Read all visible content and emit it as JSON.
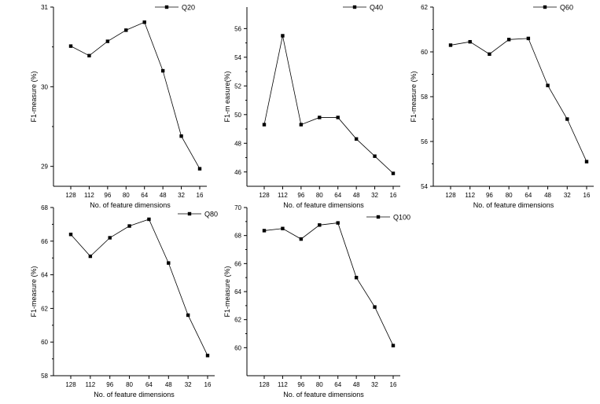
{
  "chart_data": [
    {
      "type": "line",
      "xlabel": "No. of feature dimensions",
      "ylabel": "F1-measure (%)",
      "categories": [
        "128",
        "112",
        "96",
        "80",
        "64",
        "48",
        "32",
        "16"
      ],
      "ylim": [
        28.75,
        31.0
      ],
      "yticks": [
        29,
        30,
        31
      ],
      "series": [
        {
          "name": "Q20",
          "values": [
            30.51,
            30.39,
            30.57,
            30.71,
            30.81,
            30.2,
            29.38,
            28.97
          ]
        }
      ],
      "legend": "top-right",
      "grid": false
    },
    {
      "type": "line",
      "xlabel": "No. of feature dimensions",
      "ylabel": "F1-m easure(%)",
      "categories": [
        "128",
        "112",
        "96",
        "80",
        "64",
        "48",
        "32",
        "16"
      ],
      "ylim": [
        45.0,
        57.5
      ],
      "yticks": [
        46,
        48,
        50,
        52,
        54,
        56
      ],
      "series": [
        {
          "name": "Q40",
          "values": [
            49.3,
            55.5,
            49.3,
            49.8,
            49.8,
            48.3,
            47.1,
            45.9
          ]
        }
      ],
      "legend": "top-right",
      "grid": false
    },
    {
      "type": "line",
      "xlabel": "No. of feature dimensions",
      "ylabel": "F1-measure (%)",
      "categories": [
        "128",
        "112",
        "96",
        "80",
        "64",
        "48",
        "32",
        "16"
      ],
      "ylim": [
        54.0,
        62.0
      ],
      "yticks": [
        54,
        56,
        58,
        60,
        62
      ],
      "series": [
        {
          "name": "Q60",
          "values": [
            60.3,
            60.45,
            59.9,
            60.55,
            60.6,
            58.5,
            57.0,
            55.1
          ]
        }
      ],
      "legend": "top-right",
      "grid": false
    },
    {
      "type": "line",
      "xlabel": "No. of feature dimensions",
      "ylabel": "F1-measure (%)",
      "categories": [
        "128",
        "112",
        "96",
        "80",
        "64",
        "48",
        "32",
        "16"
      ],
      "ylim": [
        58.0,
        68.0
      ],
      "yticks": [
        58,
        60,
        62,
        64,
        66,
        68
      ],
      "series": [
        {
          "name": "Q80",
          "values": [
            66.4,
            65.1,
            66.2,
            66.9,
            67.3,
            64.7,
            61.6,
            59.2
          ]
        }
      ],
      "legend": "top-right",
      "grid": false
    },
    {
      "type": "line",
      "xlabel": "No. of feature dimensions",
      "ylabel": "F1-measure (%)",
      "categories": [
        "128",
        "112",
        "96",
        "80",
        "64",
        "48",
        "32",
        "16"
      ],
      "ylim": [
        58.0,
        70.0
      ],
      "yticks": [
        60,
        62,
        64,
        66,
        68,
        70
      ],
      "series": [
        {
          "name": "Q100",
          "values": [
            68.35,
            68.5,
            67.75,
            68.75,
            68.9,
            65.0,
            62.9,
            60.15
          ]
        }
      ],
      "legend": "top-right",
      "grid": false
    }
  ]
}
